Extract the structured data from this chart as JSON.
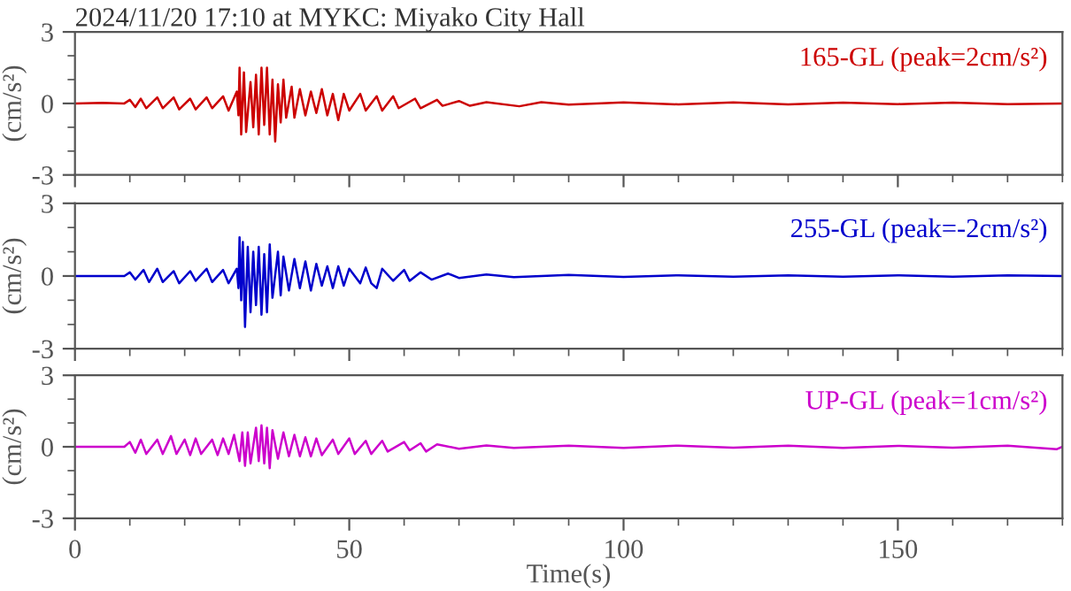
{
  "chart_data": [
    {
      "type": "line",
      "title": "2024/11/20 17:10 at MYKC: Miyako City Hall",
      "ylabel": "(cm/s²)",
      "xlim": [
        0,
        180
      ],
      "xticks": [
        0,
        50,
        100,
        150
      ],
      "ylim": [
        -3,
        3
      ],
      "yticks": [
        -3,
        0,
        3
      ],
      "tick_labels": "y",
      "grid": false,
      "legend": "top right",
      "series": [
        {
          "name": "165-GL (peak=2cm/s²)",
          "color": "#cc0000",
          "x": [
            0,
            5,
            9,
            10,
            11,
            12,
            13,
            15,
            16,
            18,
            19,
            21,
            22,
            24,
            25,
            27,
            28,
            29.5,
            29.8,
            30,
            30.3,
            30.8,
            31.2,
            32,
            32.5,
            33,
            33.5,
            34,
            34.5,
            35,
            35.5,
            36,
            36.5,
            37,
            37.5,
            38,
            38.5,
            39.5,
            40,
            41,
            42,
            43,
            44,
            45,
            46,
            47,
            48,
            49,
            50,
            52,
            53,
            55,
            56,
            58,
            59,
            62,
            63,
            66,
            67,
            70,
            72,
            75,
            81,
            85,
            90,
            100,
            110,
            120,
            130,
            140,
            150,
            160,
            170,
            180
          ],
          "values": [
            0,
            0.02,
            0,
            0.15,
            -0.15,
            0.2,
            -0.2,
            0.25,
            -0.2,
            0.25,
            -0.25,
            0.2,
            -0.25,
            0.25,
            -0.2,
            0.3,
            -0.3,
            0.5,
            -0.5,
            1.5,
            -1.3,
            1.3,
            -1.2,
            0.9,
            -1.0,
            1.2,
            -1.3,
            1.5,
            -0.9,
            1.5,
            -1.3,
            1.0,
            -1.6,
            0.8,
            -0.8,
            1.0,
            -0.6,
            0.7,
            -0.6,
            0.6,
            -0.5,
            0.5,
            -0.4,
            0.6,
            -0.5,
            0.4,
            -0.7,
            0.4,
            -0.3,
            0.4,
            -0.3,
            0.3,
            -0.3,
            0.3,
            -0.2,
            0.2,
            -0.2,
            0.15,
            -0.1,
            0.1,
            -0.1,
            0.05,
            -0.12,
            0.05,
            -0.05,
            0.04,
            -0.04,
            0.04,
            -0.04,
            0.03,
            -0.03,
            0.03,
            -0.03,
            0
          ]
        }
      ]
    },
    {
      "type": "line",
      "ylabel": "(cm/s²)",
      "xlim": [
        0,
        180
      ],
      "xticks": [
        0,
        50,
        100,
        150
      ],
      "ylim": [
        -3,
        3
      ],
      "yticks": [
        -3,
        0,
        3
      ],
      "tick_labels": "y",
      "grid": false,
      "legend": "top right",
      "series": [
        {
          "name": "255-GL (peak=-2cm/s²)",
          "color": "#0000cc",
          "x": [
            0,
            9,
            10,
            11,
            12.5,
            13.5,
            15,
            16,
            18,
            19,
            21,
            22,
            24,
            25,
            27,
            28,
            29.5,
            29.8,
            30,
            30.3,
            30.6,
            31,
            31.5,
            32,
            32.5,
            33,
            33.5,
            34,
            34.5,
            35,
            35.5,
            36,
            37,
            37.5,
            38,
            39,
            40,
            41,
            42,
            43,
            44,
            45,
            46,
            47,
            48,
            49,
            50,
            52,
            53,
            54,
            55,
            56,
            58,
            60,
            61,
            63,
            65,
            68,
            70,
            75,
            80,
            90,
            100,
            110,
            120,
            130,
            140,
            150,
            160,
            170,
            180
          ],
          "values": [
            0,
            0,
            0.15,
            -0.15,
            0.25,
            -0.25,
            0.3,
            -0.25,
            0.2,
            -0.3,
            0.2,
            -0.2,
            0.3,
            -0.25,
            0.25,
            -0.3,
            0.3,
            -0.5,
            1.6,
            -1.0,
            1.4,
            -2.1,
            1.2,
            -1.5,
            1.0,
            -1.2,
            1.2,
            -1.6,
            0.9,
            -1.5,
            1.3,
            -0.9,
            1.0,
            -0.8,
            0.8,
            -0.6,
            0.7,
            -0.5,
            0.6,
            -0.6,
            0.5,
            -0.4,
            0.4,
            -0.5,
            0.4,
            -0.4,
            0.3,
            -0.3,
            0.35,
            -0.3,
            -0.5,
            0.3,
            -0.2,
            0.25,
            -0.2,
            0.15,
            -0.15,
            0.1,
            -0.08,
            0.06,
            -0.05,
            0.04,
            -0.04,
            0.03,
            -0.03,
            0.03,
            -0.03,
            0.03,
            -0.03,
            0.03,
            0
          ]
        }
      ]
    },
    {
      "type": "line",
      "ylabel": "(cm/s²)",
      "xlabel": "Time(s)",
      "xlim": [
        0,
        180
      ],
      "xticks": [
        0,
        50,
        100,
        150
      ],
      "ylim": [
        -3,
        3
      ],
      "yticks": [
        -3,
        0,
        3
      ],
      "grid": false,
      "legend": "top right",
      "series": [
        {
          "name": "UP-GL (peak=1cm/s²)",
          "color": "#cc00cc",
          "x": [
            0,
            9,
            10,
            11,
            12,
            13,
            15,
            16,
            17.5,
            18.5,
            20,
            21,
            22,
            23,
            25,
            26,
            27,
            28,
            29,
            30,
            30.5,
            31,
            31.5,
            32,
            33,
            33.5,
            34,
            34.5,
            35,
            35.5,
            36,
            37,
            38,
            39,
            40,
            41,
            42,
            43,
            44,
            45,
            47,
            48,
            50,
            51,
            53,
            54,
            56,
            57,
            60,
            61,
            63,
            64,
            66,
            70,
            75,
            80,
            90,
            100,
            110,
            120,
            130,
            140,
            150,
            160,
            170,
            179,
            180
          ],
          "values": [
            0,
            0,
            0.2,
            -0.25,
            0.3,
            -0.3,
            0.3,
            -0.3,
            0.45,
            -0.3,
            0.3,
            -0.35,
            0.35,
            -0.3,
            0.3,
            -0.35,
            0.35,
            -0.3,
            0.5,
            -0.6,
            0.6,
            -0.8,
            0.6,
            -0.7,
            0.8,
            -0.6,
            0.9,
            -0.7,
            0.8,
            -0.9,
            0.7,
            -0.5,
            0.6,
            -0.4,
            0.5,
            -0.4,
            0.4,
            -0.4,
            0.35,
            -0.35,
            0.3,
            -0.3,
            0.35,
            -0.3,
            0.25,
            -0.3,
            0.25,
            -0.2,
            0.2,
            -0.15,
            0.15,
            -0.2,
            0.1,
            -0.08,
            0.06,
            -0.05,
            0.05,
            -0.05,
            0.05,
            -0.04,
            0.05,
            -0.05,
            0.04,
            -0.04,
            0.05,
            -0.1,
            0
          ]
        }
      ]
    }
  ]
}
